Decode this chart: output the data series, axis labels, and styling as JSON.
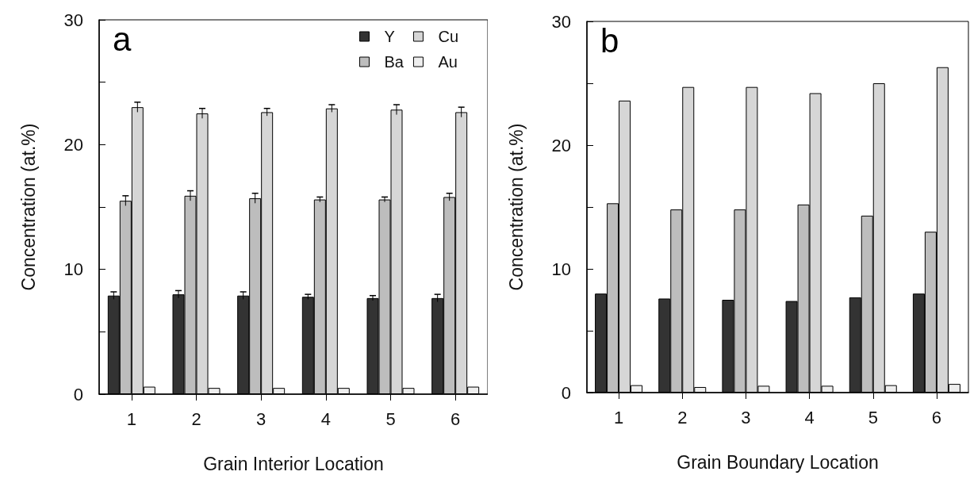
{
  "chart_data": [
    {
      "type": "bar",
      "title": "a",
      "xlabel": "Grain Interior Location",
      "ylabel": "Concentration (at.%)",
      "categories": [
        "1",
        "2",
        "3",
        "4",
        "5",
        "6"
      ],
      "series": [
        {
          "name": "Y",
          "color": "#333333",
          "values": [
            7.9,
            8.0,
            7.9,
            7.8,
            7.7,
            7.7
          ],
          "errors": [
            0.3,
            0.3,
            0.3,
            0.2,
            0.2,
            0.3
          ]
        },
        {
          "name": "Ba",
          "color": "#bdbdbd",
          "values": [
            15.5,
            15.9,
            15.7,
            15.6,
            15.6,
            15.8
          ],
          "errors": [
            0.4,
            0.4,
            0.4,
            0.2,
            0.2,
            0.3
          ]
        },
        {
          "name": "Cu",
          "color": "#d6d6d6",
          "values": [
            23.0,
            22.5,
            22.6,
            22.9,
            22.8,
            22.6
          ],
          "errors": [
            0.4,
            0.4,
            0.3,
            0.3,
            0.4,
            0.4
          ]
        },
        {
          "name": "Au",
          "color": "#eeeeee",
          "values": [
            0.6,
            0.5,
            0.5,
            0.5,
            0.5,
            0.6
          ]
        }
      ],
      "ylim": [
        0,
        30
      ],
      "yticks": [
        0,
        {
          "value": 5,
          "label": null
        },
        10,
        {
          "value": 15,
          "label": null
        },
        20,
        {
          "value": 25,
          "label": null
        },
        30
      ],
      "grid": false,
      "legend": "top right"
    },
    {
      "type": "bar",
      "title": "b",
      "xlabel": "Grain Boundary Location",
      "ylabel": "Concentration (at.%)",
      "categories": [
        "1",
        "2",
        "3",
        "4",
        "5",
        "6"
      ],
      "series": [
        {
          "color": "#333333",
          "values": [
            8.0,
            7.6,
            7.5,
            7.4,
            7.7,
            8.0
          ]
        },
        {
          "color": "#bdbdbd",
          "values": [
            15.3,
            14.8,
            14.8,
            15.2,
            14.3,
            13.0
          ]
        },
        {
          "color": "#d6d6d6",
          "values": [
            23.6,
            24.7,
            24.7,
            24.2,
            25.0,
            26.3
          ]
        },
        {
          "color": "#eeeeee",
          "values": [
            0.6,
            0.45,
            0.55,
            0.55,
            0.6,
            0.7
          ]
        }
      ],
      "ylim": [
        0,
        30
      ],
      "yticks": [
        0,
        {
          "value": 5,
          "label": null
        },
        10,
        {
          "value": 15,
          "label": null
        },
        20,
        {
          "value": 25,
          "label": null
        },
        30
      ],
      "grid": false,
      "legend": false
    }
  ]
}
